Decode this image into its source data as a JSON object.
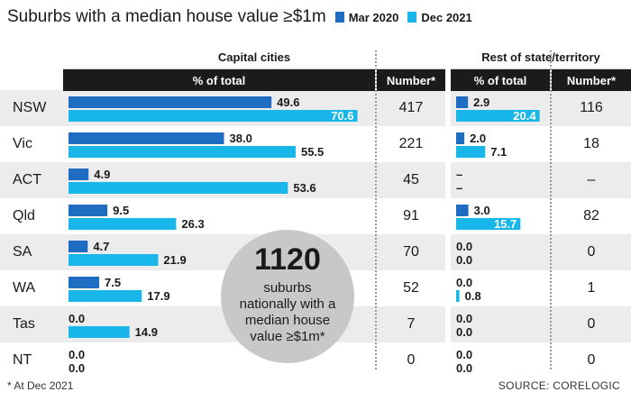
{
  "title": "Suburbs with a median house value ≥$1m",
  "legend": [
    {
      "label": "Mar 2020",
      "color": "#1f6dc2"
    },
    {
      "label": "Dec 2021",
      "color": "#19b6ea"
    }
  ],
  "headers": {
    "capital": "Capital cities",
    "rest": "Rest of state/territory",
    "pct": "% of total",
    "number": "Number*"
  },
  "bubble": {
    "number": "1120",
    "text": "suburbs nationally with a median house value ≥$1m*"
  },
  "footnote": "* At Dec 2021",
  "source": "SOURCE: CORELOGIC",
  "chart_data": [
    {
      "type": "bar",
      "title": "Capital cities",
      "categories": [
        "NSW",
        "Vic",
        "ACT",
        "Qld",
        "SA",
        "WA",
        "Tas",
        "NT"
      ],
      "series": [
        {
          "name": "Mar 2020",
          "values": [
            49.6,
            38.0,
            4.9,
            9.5,
            4.7,
            7.5,
            0.0,
            0.0
          ],
          "labels": [
            "49.6",
            "38.0",
            "4.9",
            "9.5",
            "4.7",
            "7.5",
            "0.0",
            "0.0"
          ]
        },
        {
          "name": "Dec 2021",
          "values": [
            70.6,
            55.5,
            53.6,
            26.3,
            21.9,
            17.9,
            14.9,
            0.0
          ],
          "labels": [
            "70.6",
            "55.5",
            "53.6",
            "26.3",
            "21.9",
            "17.9",
            "14.9",
            "0.0"
          ]
        }
      ],
      "number": [
        "417",
        "221",
        "45",
        "91",
        "70",
        "52",
        "7",
        "0"
      ],
      "xlim": [
        0,
        75
      ]
    },
    {
      "type": "bar",
      "title": "Rest of state/territory",
      "categories": [
        "NSW",
        "Vic",
        "ACT",
        "Qld",
        "SA",
        "WA",
        "Tas",
        "NT"
      ],
      "series": [
        {
          "name": "Mar 2020",
          "values": [
            2.9,
            2.0,
            null,
            3.0,
            0.0,
            0.0,
            0.0,
            0.0
          ],
          "labels": [
            "2.9",
            "2.0",
            "–",
            "3.0",
            "0.0",
            "0.0",
            "0.0",
            "0.0"
          ]
        },
        {
          "name": "Dec 2021",
          "values": [
            20.4,
            7.1,
            null,
            15.7,
            0.0,
            0.8,
            0.0,
            0.0
          ],
          "labels": [
            "20.4",
            "7.1",
            "–",
            "15.7",
            "0.0",
            "0.8",
            "0.0",
            "0.0"
          ]
        }
      ],
      "number": [
        "116",
        "18",
        "–",
        "82",
        "0",
        "1",
        "0",
        "0"
      ],
      "xlim": [
        0,
        25
      ]
    }
  ]
}
